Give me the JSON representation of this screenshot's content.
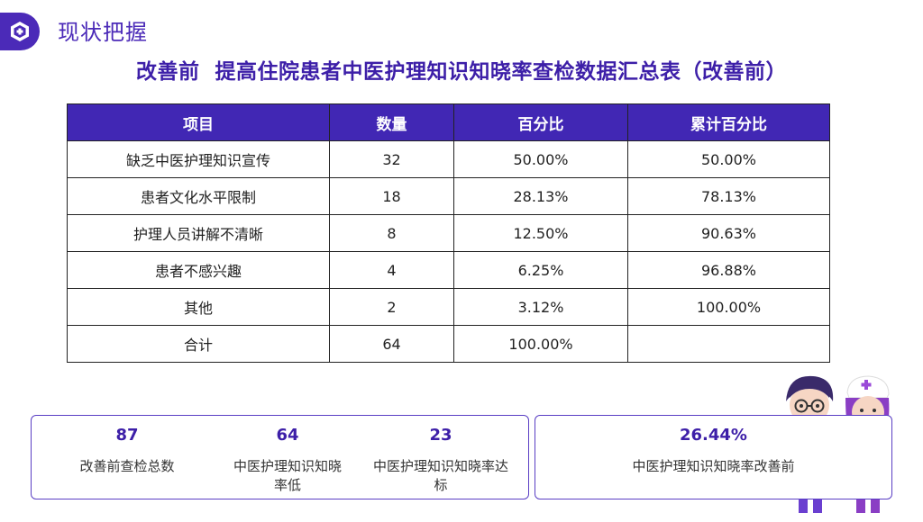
{
  "header": {
    "section_label": "现状把握",
    "title": "改善前  提高住院患者中医护理知识知晓率查检数据汇总表（改善前）"
  },
  "table": {
    "headers": [
      "项目",
      "数量",
      "百分比",
      "累计百分比"
    ],
    "rows": [
      {
        "item": "缺乏中医护理知识宣传",
        "count": "32",
        "percent": "50.00%",
        "cumulative": "50.00%"
      },
      {
        "item": "患者文化水平限制",
        "count": "18",
        "percent": "28.13%",
        "cumulative": "78.13%"
      },
      {
        "item": "护理人员讲解不清晰",
        "count": "8",
        "percent": "12.50%",
        "cumulative": "90.63%"
      },
      {
        "item": "患者不感兴趣",
        "count": "4",
        "percent": "6.25%",
        "cumulative": "96.88%"
      },
      {
        "item": "其他",
        "count": "2",
        "percent": "3.12%",
        "cumulative": "100.00%"
      },
      {
        "item": "合计",
        "count": "64",
        "percent": "100.00%",
        "cumulative": ""
      }
    ]
  },
  "stats": [
    {
      "value": "87",
      "label": "改善前查检总数"
    },
    {
      "value": "64",
      "label": "中医护理知识知晓率低"
    },
    {
      "value": "23",
      "label": "中医护理知识知晓率达标"
    }
  ],
  "rate": {
    "value": "26.44%",
    "label": "中医护理知识知晓率改善前"
  },
  "icons": {
    "badge": "hexagon-logo-icon",
    "mascot": "doctor-nurse-illustration"
  },
  "colors": {
    "accent": "#4b2ab8",
    "table_header": "#4127b4",
    "title": "#3d1fa8"
  }
}
